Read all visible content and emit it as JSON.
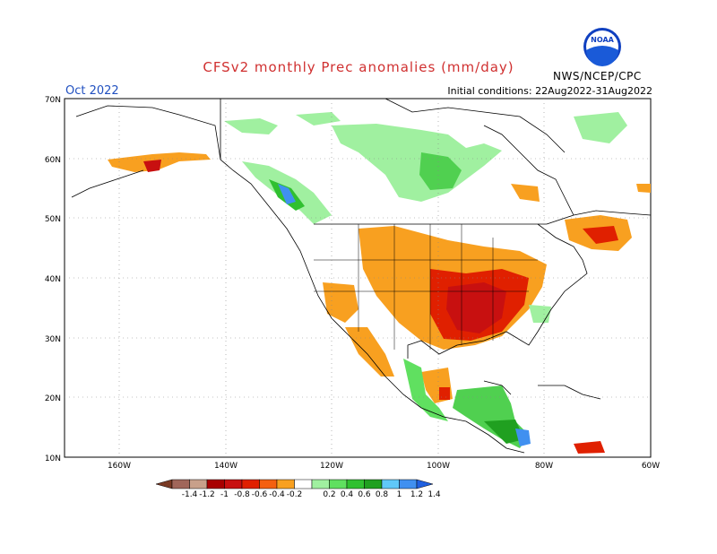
{
  "title": "CFSv2 monthly Prec anomalies (mm/day)",
  "month": "Oct 2022",
  "initial_conditions": "Initial conditions: 22Aug2022-31Aug2022",
  "org": "NWS/NCEP/CPC",
  "logo_text": "NOAA",
  "lat_labels": [
    "70N",
    "60N",
    "50N",
    "40N",
    "30N",
    "20N",
    "10N"
  ],
  "lon_labels": [
    "160W",
    "140W",
    "120W",
    "100W",
    "80W",
    "60W"
  ],
  "colorbar": {
    "labels": [
      "-1.4",
      "-1.2",
      "-1",
      "-0.8",
      "-0.6",
      "-0.4",
      "-0.2",
      "0.2",
      "0.4",
      "0.6",
      "0.8",
      "1",
      "1.2",
      "1.4"
    ],
    "colors": [
      "#7a3a24",
      "#a0665a",
      "#c8a08a",
      "#a80000",
      "#c81010",
      "#e02000",
      "#f46010",
      "#f8a020",
      "#ffffff",
      "#a0f0a0",
      "#60e060",
      "#30c030",
      "#20a020",
      "#60c8f8",
      "#4090f0",
      "#2060e0"
    ]
  },
  "regions": {
    "dry_strong": "#c81010",
    "dry_moderate": "#e85020",
    "dry_light": "#f8a020",
    "wet_light": "#a0f0a0",
    "wet_moderate": "#50d050",
    "wet_strong": "#20a020",
    "wet_very": "#4090f0"
  }
}
